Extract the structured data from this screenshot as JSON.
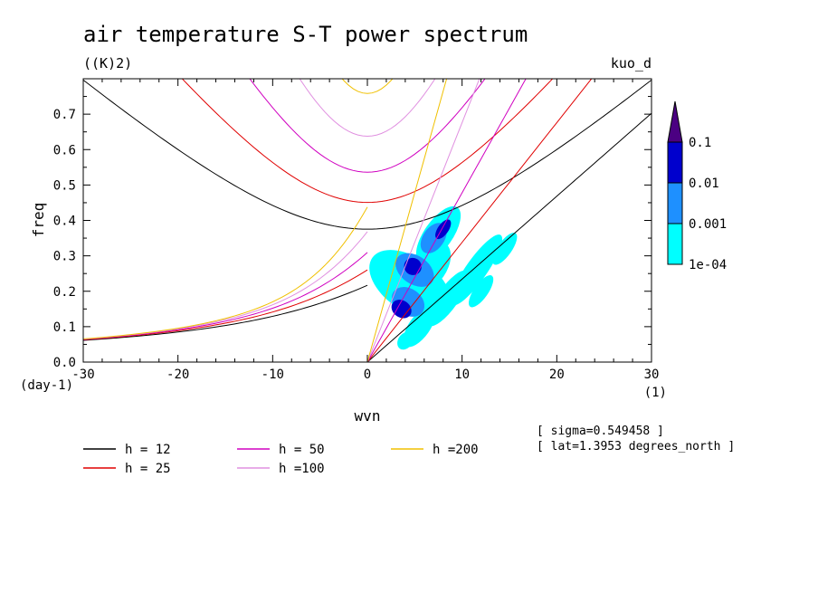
{
  "chart_data": {
    "type": "contour",
    "title": "air temperature S-T power spectrum",
    "subtitle": "((K)2)",
    "model_label": "kuo_d",
    "xlabel": "wvn",
    "ylabel": "freq",
    "x_unit": "(1)",
    "y_unit": "(day-1)",
    "xlim": [
      -30,
      30
    ],
    "ylim": [
      0,
      0.8
    ],
    "xticks": [
      -30,
      -20,
      -10,
      0,
      10,
      20,
      30
    ],
    "yticks": [
      0.0,
      0.1,
      0.2,
      0.3,
      0.4,
      0.5,
      0.6,
      0.7
    ],
    "xtick_labels": [
      "-30",
      "-20",
      "-10",
      "0",
      "10",
      "20",
      "30"
    ],
    "ytick_labels": [
      "0.0",
      "0.1",
      "0.2",
      "0.3",
      "0.4",
      "0.5",
      "0.6",
      "0.7"
    ],
    "colorbar": {
      "levels": [
        0.0001,
        0.001,
        0.01,
        0.1
      ],
      "labels": [
        "1e-04",
        "0.001",
        "0.01",
        "0.1"
      ],
      "colors": [
        "#00ffff",
        "#1e90ff",
        "#0000cd",
        "#4b0082"
      ]
    },
    "dispersion_curves": [
      {
        "label": "h = 12",
        "h": 12,
        "color": "#000000"
      },
      {
        "label": "h = 25",
        "h": 25,
        "color": "#e00000"
      },
      {
        "label": "h = 50",
        "h": 50,
        "color": "#d000c0"
      },
      {
        "label": "h =100",
        "h": 100,
        "color": "#e090e0"
      },
      {
        "label": "h =200",
        "h": 200,
        "color": "#f0c000"
      }
    ],
    "spectrum_blobs": [
      {
        "level": 0,
        "x": 4.5,
        "y": 0.22,
        "rx": 2.8,
        "ry": 0.13
      },
      {
        "level": 0,
        "x": 7.5,
        "y": 0.36,
        "rx": 3.5,
        "ry": 0.04
      },
      {
        "level": 0,
        "x": 6.5,
        "y": 0.27,
        "rx": 3.0,
        "ry": 0.05
      },
      {
        "level": 0,
        "x": 8.5,
        "y": 0.18,
        "rx": 3.5,
        "ry": 0.03
      },
      {
        "level": 0,
        "x": 11.5,
        "y": 0.26,
        "rx": 4.5,
        "ry": 0.03
      },
      {
        "level": 0,
        "x": 5.5,
        "y": 0.1,
        "rx": 2.5,
        "ry": 0.03
      },
      {
        "level": 0,
        "x": 4.0,
        "y": 0.06,
        "rx": 1.0,
        "ry": 0.02
      },
      {
        "level": 0,
        "x": 14.5,
        "y": 0.32,
        "rx": 2.0,
        "ry": 0.02
      },
      {
        "level": 0,
        "x": 12.0,
        "y": 0.2,
        "rx": 2.0,
        "ry": 0.02
      },
      {
        "level": 1,
        "x": 4.3,
        "y": 0.17,
        "rx": 1.4,
        "ry": 0.05
      },
      {
        "level": 1,
        "x": 5.0,
        "y": 0.26,
        "rx": 1.5,
        "ry": 0.06
      },
      {
        "level": 1,
        "x": 7.0,
        "y": 0.35,
        "rx": 1.8,
        "ry": 0.03
      },
      {
        "level": 2,
        "x": 3.6,
        "y": 0.15,
        "rx": 0.9,
        "ry": 0.03
      },
      {
        "level": 2,
        "x": 4.8,
        "y": 0.27,
        "rx": 0.9,
        "ry": 0.025
      },
      {
        "level": 2,
        "x": 8.0,
        "y": 0.375,
        "rx": 1.2,
        "ry": 0.015
      }
    ],
    "annotations": [
      "[ sigma=0.549458 ]",
      "[ lat=1.3953 degrees_north ]"
    ]
  }
}
